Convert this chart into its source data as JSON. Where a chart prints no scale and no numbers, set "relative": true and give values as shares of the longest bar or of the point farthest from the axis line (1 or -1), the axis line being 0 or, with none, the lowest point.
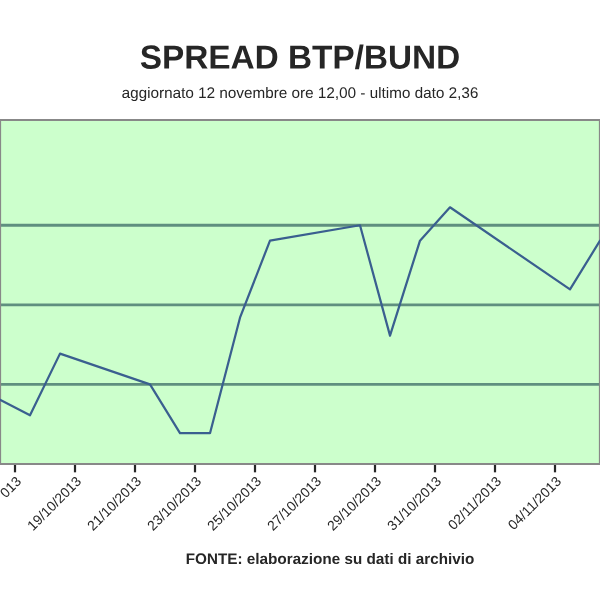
{
  "chart_data": {
    "type": "line",
    "title": "SPREAD BTP/BUND",
    "subtitle": "aggiornato 12 novembre ore 12,00 - ultimo dato 2,36",
    "relative": true,
    "x": [
      "2013-10-16T12:00",
      "2013-10-17T12:00",
      "2013-10-18T12:00",
      "2013-10-21T12:00",
      "2013-10-22T12:00",
      "2013-10-23T12:00",
      "2013-10-24T12:00",
      "2013-10-25T12:00",
      "2013-10-28T12:00",
      "2013-10-29T12:00",
      "2013-10-30T12:00",
      "2013-10-31T12:00",
      "2013-11-04T12:00",
      "2013-11-05T12:00"
    ],
    "series": [
      {
        "color": "#3a5f8f",
        "values": [
          0.25,
          0.19,
          0.43,
          0.31,
          0.12,
          0.12,
          0.57,
          0.87,
          0.93,
          0.5,
          0.87,
          1.0,
          0.68,
          0.87
        ]
      }
    ],
    "xlim": [
      "2013-10-16T12:00",
      "2013-11-05T12:00"
    ],
    "xticks": [
      {
        "value": "2013-10-17",
        "label": "013"
      },
      {
        "value": "2013-10-19",
        "label": "19/10/2013"
      },
      {
        "value": "2013-10-21",
        "label": "21/10/2013"
      },
      {
        "value": "2013-10-23",
        "label": "23/10/2013"
      },
      {
        "value": "2013-10-25",
        "label": "25/10/2013"
      },
      {
        "value": "2013-10-27",
        "label": "27/10/2013"
      },
      {
        "value": "2013-10-29",
        "label": "29/10/2013"
      },
      {
        "value": "2013-10-31",
        "label": "31/10/2013"
      },
      {
        "value": "2013-11-02",
        "label": "02/11/2013"
      },
      {
        "value": "2013-11-04",
        "label": "04/11/2013"
      }
    ],
    "ref_lines": [
      {
        "axis": "y",
        "value": 0.31,
        "color": "#5f8f7f"
      },
      {
        "axis": "y",
        "value": 0.62,
        "color": "#5f8f7f"
      },
      {
        "axis": "y",
        "value": 0.93,
        "color": "#5f8f7f"
      }
    ],
    "legend": false,
    "marker": "none",
    "line_style": "solid",
    "annotations": [
      "FONTE: elaborazione su dati di archivio"
    ]
  }
}
